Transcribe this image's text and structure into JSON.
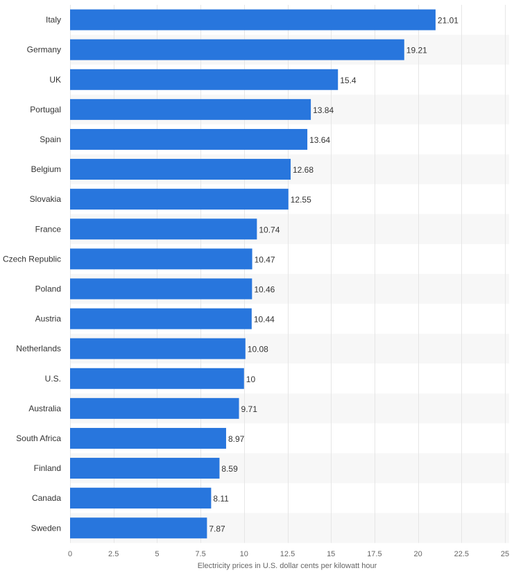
{
  "chart_data": {
    "type": "bar",
    "orientation": "horizontal",
    "categories": [
      "Italy",
      "Germany",
      "UK",
      "Portugal",
      "Spain",
      "Belgium",
      "Slovakia",
      "France",
      "Czech Republic",
      "Poland",
      "Austria",
      "Netherlands",
      "U.S.",
      "Australia",
      "South Africa",
      "Finland",
      "Canada",
      "Sweden"
    ],
    "values": [
      21.01,
      19.21,
      15.4,
      13.84,
      13.64,
      12.68,
      12.55,
      10.74,
      10.47,
      10.46,
      10.44,
      10.08,
      10,
      9.71,
      8.97,
      8.59,
      8.11,
      7.87
    ],
    "value_labels": [
      "21.01",
      "19.21",
      "15.4",
      "13.84",
      "13.64",
      "12.68",
      "12.55",
      "10.74",
      "10.47",
      "10.46",
      "10.44",
      "10.08",
      "10",
      "9.71",
      "8.97",
      "8.59",
      "8.11",
      "7.87"
    ],
    "xlabel": "Electricity prices in U.S. dollar cents per kilowatt hour",
    "xlim": [
      0,
      25
    ],
    "xticks": [
      "0",
      "2.5",
      "5",
      "7.5",
      "10",
      "12.5",
      "15",
      "17.5",
      "20",
      "22.5",
      "25"
    ],
    "grid": true,
    "colors": {
      "bar": "#2876dd",
      "stripe": "#f7f7f7",
      "grid": "#e6e6e6"
    }
  }
}
